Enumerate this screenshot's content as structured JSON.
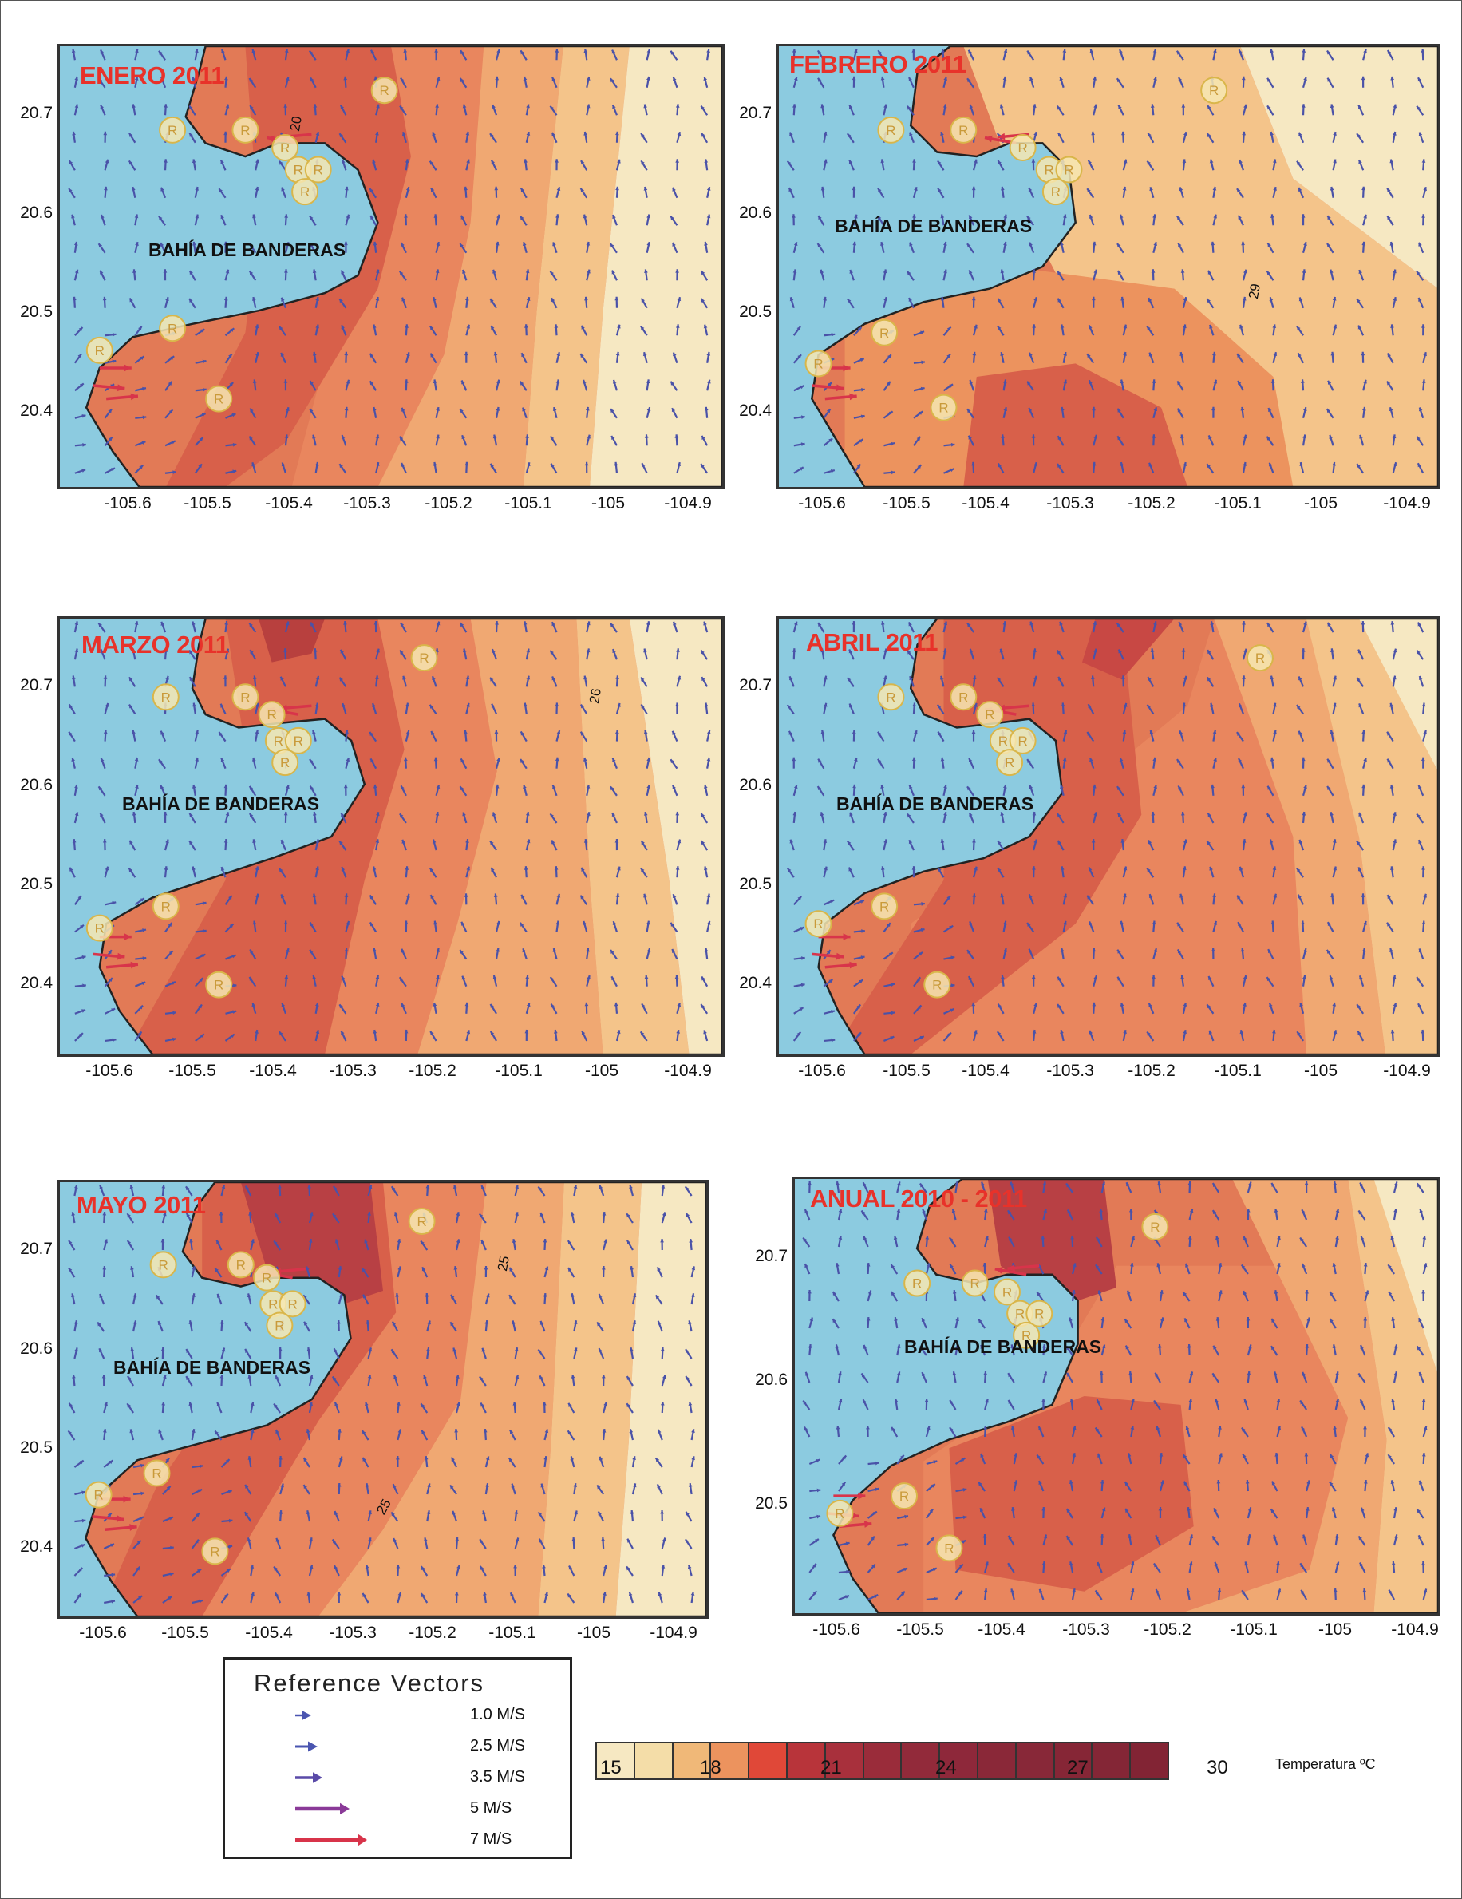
{
  "panels": [
    {
      "title": "ENERO 2011",
      "bay": "BAHÍA DE BANDERAS",
      "yticks": [
        "20.7",
        "20.6",
        "20.5",
        "20.4"
      ],
      "xticks": [
        "-105.6",
        "-105.5",
        "-105.4",
        "-105.3",
        "-105.2",
        "-105.1",
        "-105",
        "-104.9"
      ],
      "contour_label": "20"
    },
    {
      "title": "FEBRERO 2011",
      "bay": "BAHÍA DE BANDERAS",
      "yticks": [
        "20.7",
        "20.6",
        "20.5",
        "20.4"
      ],
      "xticks": [
        "-105.6",
        "-105.5",
        "-105.4",
        "-105.3",
        "-105.2",
        "-105.1",
        "-105",
        "-104.9"
      ],
      "contour_label": "29"
    },
    {
      "title": "MARZO 2011",
      "bay": "BAHÍA DE BANDERAS",
      "yticks": [
        "20.7",
        "20.6",
        "20.5",
        "20.4"
      ],
      "xticks": [
        "-105.6",
        "-105.5",
        "-105.4",
        "-105.3",
        "-105.2",
        "-105.1",
        "-105",
        "-104.9"
      ],
      "contour_label": "26"
    },
    {
      "title": "ABRIL 2011",
      "bay": "BAHÍA DE BANDERAS",
      "yticks": [
        "20.7",
        "20.6",
        "20.5",
        "20.4"
      ],
      "xticks": [
        "-105.6",
        "-105.5",
        "-105.4",
        "-105.3",
        "-105.2",
        "-105.1",
        "-105",
        "-104.9"
      ],
      "contour_label": ""
    },
    {
      "title": "MAYO 2011",
      "bay": "BAHÍA DE BANDERAS",
      "yticks": [
        "20.7",
        "20.6",
        "20.5",
        "20.4"
      ],
      "xticks": [
        "-105.6",
        "-105.5",
        "-105.4",
        "-105.3",
        "-105.2",
        "-105.1",
        "-105",
        "-104.9"
      ],
      "contour_label": "25",
      "contour_label2": "25"
    },
    {
      "title": "ANUAL 2010 - 2011",
      "bay": "BAHÍA DE BANDERAS",
      "yticks": [
        "20.7",
        "20.6",
        "20.5"
      ],
      "xticks": [
        "-105.6",
        "-105.5",
        "-105.4",
        "-105.3",
        "-105.2",
        "-105.1",
        "-105",
        "-104.9"
      ],
      "contour_label": ""
    }
  ],
  "legend": {
    "title": "Reference Vectors",
    "items": [
      {
        "label": "1.0 M/S",
        "color": "#4a55b0"
      },
      {
        "label": "2.5 M/S",
        "color": "#4a55b0"
      },
      {
        "label": "3.5 M/S",
        "color": "#5a4aa8"
      },
      {
        "label": "5 M/S",
        "color": "#8a3a98"
      },
      {
        "label": "7 M/S",
        "color": "#d8344a"
      }
    ]
  },
  "colorscale": {
    "name": "Temperatura ºC",
    "ticks": [
      "15",
      "18",
      "21",
      "24",
      "27",
      "30"
    ],
    "colors": [
      "#f6e8c2",
      "#f4dda8",
      "#f0b878",
      "#ec935e",
      "#e04838",
      "#b8343a",
      "#a8303c",
      "#9a2c3a",
      "#922a3a",
      "#8e283a",
      "#8a2838",
      "#882838",
      "#862636",
      "#842636",
      "#822434"
    ]
  },
  "colors": {
    "sea": "#8ccbe0",
    "coast": "#222222",
    "marker_fill": "#f6e7b2",
    "marker_stroke": "#d9b64a",
    "title_red": "#e8322a"
  }
}
